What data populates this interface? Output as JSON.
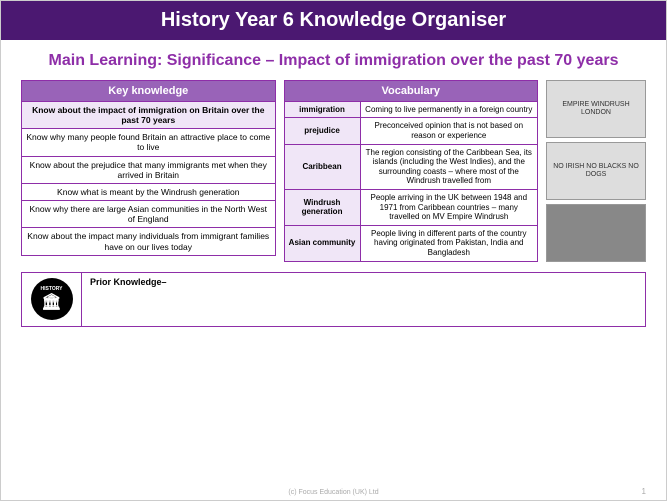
{
  "header": "History Year 6 Knowledge Organiser",
  "subtitle": "Main Learning: Significance – Impact of immigration over the past 70 years",
  "kk_header": "Key knowledge",
  "kk_rows": [
    "Know about the impact of immigration on Britain over the past 70 years",
    "Know why many people found Britain an attractive place to come to live",
    "Know about the prejudice that many immigrants met when they arrived in Britain",
    "Know what is meant by the Windrush generation",
    "Know why there are large Asian communities in the North West of England",
    "Know about the impact many individuals from immigrant families have on our lives today"
  ],
  "vocab_header": "Vocabulary",
  "vocab_rows": [
    {
      "term": "immigration",
      "def": "Coming to live permanently in a foreign country"
    },
    {
      "term": "prejudice",
      "def": "Preconceived opinion that is not based on reason or experience"
    },
    {
      "term": "Caribbean",
      "def": "The region consisting of the Caribbean Sea, its islands (including the West Indies), and the surrounding coasts – where most of the Windrush travelled from"
    },
    {
      "term": "Windrush generation",
      "def": "People arriving in the UK between 1948 and 1971 from Caribbean countries – many travelled on MV Empire Windrush"
    },
    {
      "term": "Asian community",
      "def": "People living in different parts of the country having originated from Pakistan, India and Bangladesh"
    }
  ],
  "prior_label": "Prior Knowledge–",
  "icon_label": "HISTORY",
  "footer": "(c) Focus Education (UK) Ltd",
  "page_num": "1",
  "images": [
    "EMPIRE WINDRUSH\\nLONDON",
    "NO IRISH\\nNO BLACKS\\nNO DOGS",
    ""
  ]
}
